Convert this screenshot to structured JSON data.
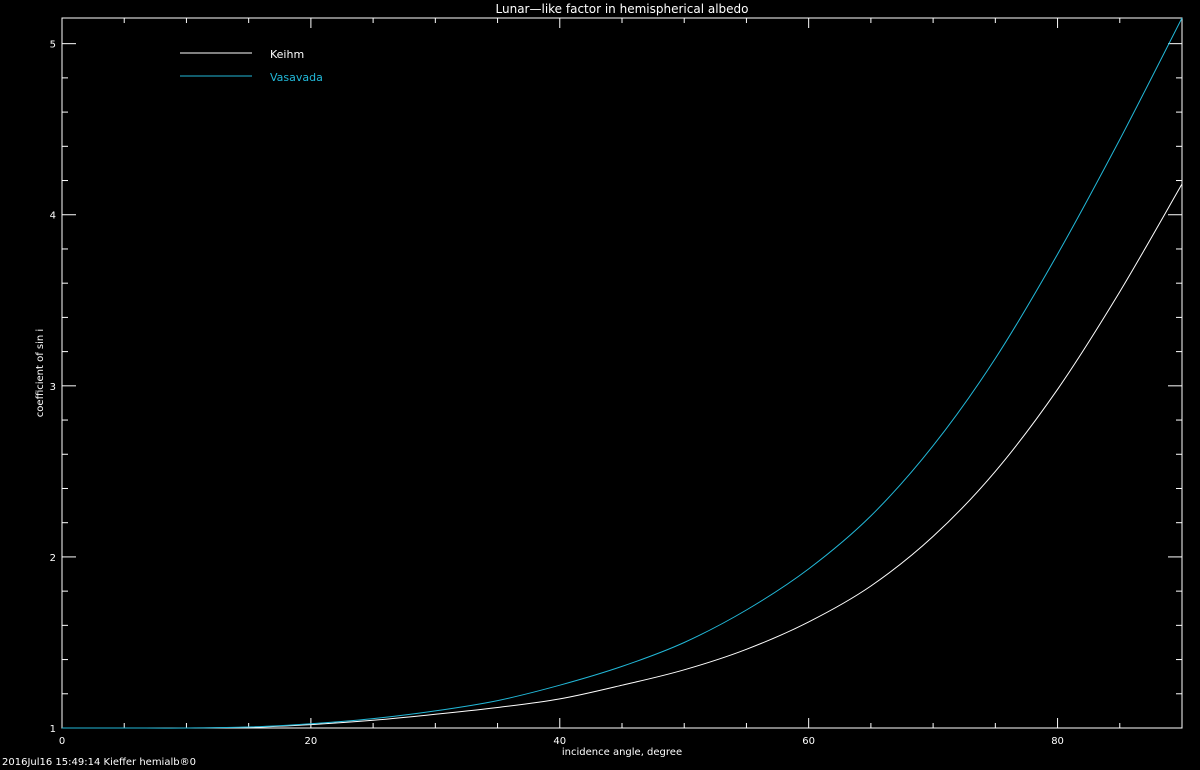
{
  "chart_data": {
    "type": "line",
    "title": "Lunar—like factor in hemispherical albedo",
    "xlabel": "incidence angle, degree",
    "ylabel": "coefficient of sin i",
    "xlim": [
      0,
      90
    ],
    "ylim": [
      1,
      5.15
    ],
    "xticks": [
      0,
      20,
      40,
      60,
      80
    ],
    "xtick_labels": [
      "0",
      "20",
      "40",
      "60",
      "80"
    ],
    "yticks": [
      1,
      2,
      3,
      4,
      5
    ],
    "ytick_labels": [
      "1",
      "2",
      "3",
      "4",
      "5"
    ],
    "grid": false,
    "legend_position": "top-left",
    "background": "#000000",
    "axis_color": "#ffffff",
    "x": [
      0,
      5,
      10,
      15,
      20,
      25,
      30,
      35,
      40,
      45,
      50,
      55,
      60,
      65,
      70,
      75,
      80,
      85,
      90
    ],
    "series": [
      {
        "name": "Keihm",
        "color": "#ffffff",
        "values": [
          1.0,
          1.0,
          1.0,
          1.004,
          1.02,
          1.045,
          1.08,
          1.12,
          1.17,
          1.25,
          1.34,
          1.46,
          1.62,
          1.83,
          2.12,
          2.5,
          2.98,
          3.55,
          4.18
        ]
      },
      {
        "name": "Vasavada",
        "color": "#22b8d8",
        "values": [
          1.0,
          1.0,
          1.0,
          1.006,
          1.025,
          1.055,
          1.1,
          1.16,
          1.25,
          1.36,
          1.5,
          1.69,
          1.93,
          2.24,
          2.65,
          3.16,
          3.77,
          4.44,
          5.15
        ]
      }
    ]
  },
  "footer": "2016Jul16 15:49:14 Kieffer hemialb®0"
}
